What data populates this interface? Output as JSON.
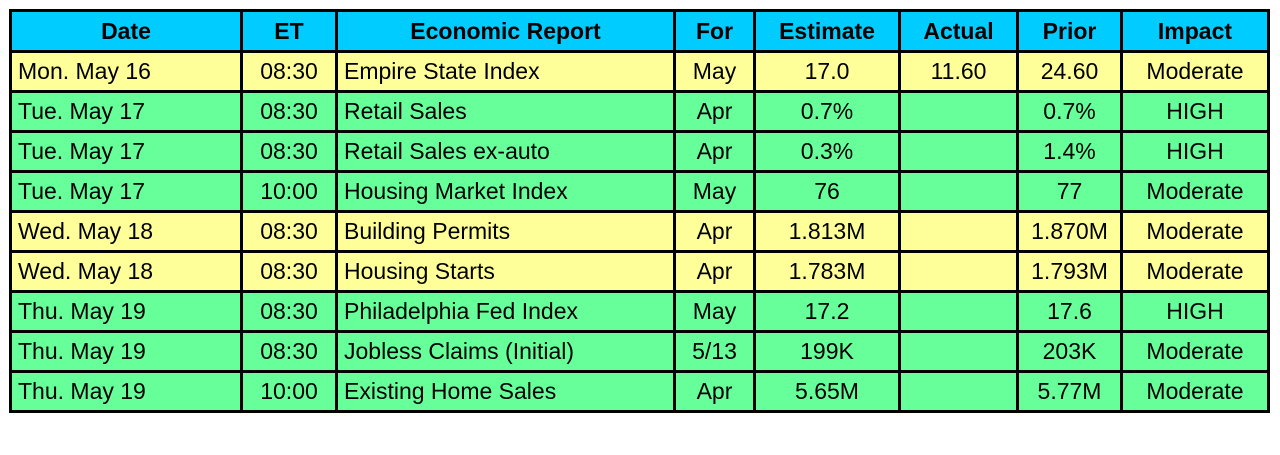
{
  "headers": [
    "Date",
    "ET",
    "Economic Report",
    "For",
    "Estimate",
    "Actual",
    "Prior",
    "Impact"
  ],
  "row_colors": {
    "yellow": "#ffff99",
    "green": "#66ff99",
    "header": "#00ccff"
  },
  "rows": [
    {
      "tone": "yellow",
      "date": "Mon. May 16",
      "et": "08:30",
      "report": "Empire State Index",
      "for": "May",
      "estimate": "17.0",
      "actual": "11.60",
      "prior": "24.60",
      "impact": "Moderate"
    },
    {
      "tone": "green",
      "date": "Tue. May 17",
      "et": "08:30",
      "report": "Retail Sales",
      "for": "Apr",
      "estimate": "0.7%",
      "actual": "",
      "prior": "0.7%",
      "impact": "HIGH"
    },
    {
      "tone": "green",
      "date": "Tue. May 17",
      "et": "08:30",
      "report": "Retail Sales ex-auto",
      "for": "Apr",
      "estimate": "0.3%",
      "actual": "",
      "prior": "1.4%",
      "impact": "HIGH"
    },
    {
      "tone": "green",
      "date": "Tue. May 17",
      "et": "10:00",
      "report": "Housing Market Index",
      "for": "May",
      "estimate": "76",
      "actual": "",
      "prior": "77",
      "impact": "Moderate"
    },
    {
      "tone": "yellow",
      "date": "Wed. May 18",
      "et": "08:30",
      "report": "Building Permits",
      "for": "Apr",
      "estimate": "1.813M",
      "actual": "",
      "prior": "1.870M",
      "impact": "Moderate"
    },
    {
      "tone": "yellow",
      "date": "Wed. May 18",
      "et": "08:30",
      "report": "Housing Starts",
      "for": "Apr",
      "estimate": "1.783M",
      "actual": "",
      "prior": "1.793M",
      "impact": "Moderate"
    },
    {
      "tone": "green",
      "date": "Thu. May 19",
      "et": "08:30",
      "report": "Philadelphia Fed Index",
      "for": "May",
      "estimate": "17.2",
      "actual": "",
      "prior": "17.6",
      "impact": "HIGH"
    },
    {
      "tone": "green",
      "date": "Thu. May 19",
      "et": "08:30",
      "report": "Jobless Claims (Initial)",
      "for": "5/13",
      "estimate": "199K",
      "actual": "",
      "prior": "203K",
      "impact": "Moderate"
    },
    {
      "tone": "green",
      "date": "Thu. May 19",
      "et": "10:00",
      "report": "Existing Home Sales",
      "for": "Apr",
      "estimate": "5.65M",
      "actual": "",
      "prior": "5.77M",
      "impact": "Moderate"
    }
  ]
}
